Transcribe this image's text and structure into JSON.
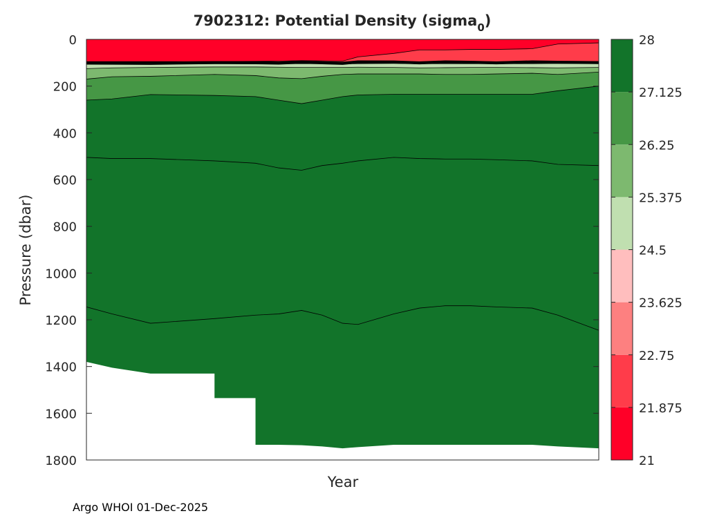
{
  "chart_data": {
    "type": "contour",
    "title_main": "7902312: Potential Density (sigma",
    "title_sub": "0",
    "title_close": ")",
    "xlabel": "Year",
    "ylabel": "Pressure (dbar)",
    "ylim": [
      0,
      1800
    ],
    "y_reversed": true,
    "y_ticks": [
      0,
      200,
      400,
      600,
      800,
      1000,
      1200,
      1400,
      1600,
      1800
    ],
    "x_ticks": [],
    "grid": false,
    "colorbar": {
      "range": [
        21,
        28
      ],
      "tick_labels": [
        "28",
        "27.125",
        "26.25",
        "25.375",
        "24.5",
        "23.625",
        "22.75",
        "21.875",
        "21"
      ],
      "levels": [
        {
          "from": 21.0,
          "to": 21.875,
          "color": "#ff0028"
        },
        {
          "from": 21.875,
          "to": 22.75,
          "color": "#ff3c4a"
        },
        {
          "from": 22.75,
          "to": 23.625,
          "color": "#fd8080"
        },
        {
          "from": 23.625,
          "to": 24.5,
          "color": "#ffbebe"
        },
        {
          "from": 24.5,
          "to": 25.375,
          "color": "#c0dfb0"
        },
        {
          "from": 25.375,
          "to": 26.25,
          "color": "#7db96f"
        },
        {
          "from": 26.25,
          "to": 27.125,
          "color": "#469745"
        },
        {
          "from": 27.125,
          "to": 28.0,
          "color": "#12742a"
        }
      ]
    },
    "profiles": {
      "time_fraction": [
        0.0,
        0.05,
        0.125,
        0.25,
        0.33,
        0.375,
        0.42,
        0.46,
        0.5,
        0.53,
        0.6,
        0.65,
        0.7,
        0.75,
        0.8,
        0.87,
        0.92,
        1.0
      ],
      "max_pressure": [
        1380,
        1405,
        1430,
        1535,
        1735,
        1735,
        1737,
        1742,
        1750,
        1745,
        1735,
        1735,
        1735,
        1735,
        1735,
        1735,
        1742,
        1750
      ],
      "isopycnals": [
        {
          "sigma": 21.875,
          "pressure": [
            95,
            95,
            95,
            95,
            94,
            93,
            91,
            92,
            93,
            75,
            60,
            45,
            45,
            43,
            43,
            40,
            20,
            15
          ]
        },
        {
          "sigma": 22.75,
          "pressure": [
            102,
            101,
            100,
            100,
            99,
            99,
            98,
            99,
            100,
            97,
            96,
            98,
            97,
            97,
            98,
            97,
            97,
            97
          ]
        },
        {
          "sigma": 24.5,
          "pressure": [
            105,
            105,
            105,
            104,
            103,
            104,
            104,
            104,
            105,
            104,
            103,
            104,
            104,
            104,
            104,
            104,
            103,
            103
          ]
        },
        {
          "sigma": 25.375,
          "pressure": [
            125,
            122,
            120,
            118,
            118,
            119,
            120,
            120,
            120,
            119,
            120,
            122,
            121,
            120,
            120,
            121,
            122,
            120
          ]
        },
        {
          "sigma": 26.25,
          "pressure": [
            170,
            160,
            158,
            150,
            155,
            165,
            168,
            158,
            150,
            148,
            148,
            148,
            150,
            150,
            148,
            145,
            150,
            140
          ]
        },
        {
          "sigma": 27.125,
          "pressure": [
            260,
            255,
            236,
            240,
            245,
            260,
            275,
            260,
            245,
            238,
            235,
            235,
            235,
            235,
            235,
            235,
            220,
            200
          ]
        },
        {
          "sigma": 27.5,
          "pressure": [
            505,
            510,
            510,
            520,
            530,
            550,
            560,
            540,
            530,
            520,
            505,
            510,
            512,
            512,
            515,
            520,
            535,
            540
          ]
        },
        {
          "sigma": 27.7,
          "pressure": [
            1145,
            1175,
            1215,
            1195,
            1180,
            1175,
            1160,
            1180,
            1215,
            1220,
            1175,
            1150,
            1140,
            1140,
            1145,
            1150,
            1180,
            1245
          ]
        }
      ]
    }
  },
  "footer": {
    "note": "Argo WHOI 01-Dec-2025"
  }
}
